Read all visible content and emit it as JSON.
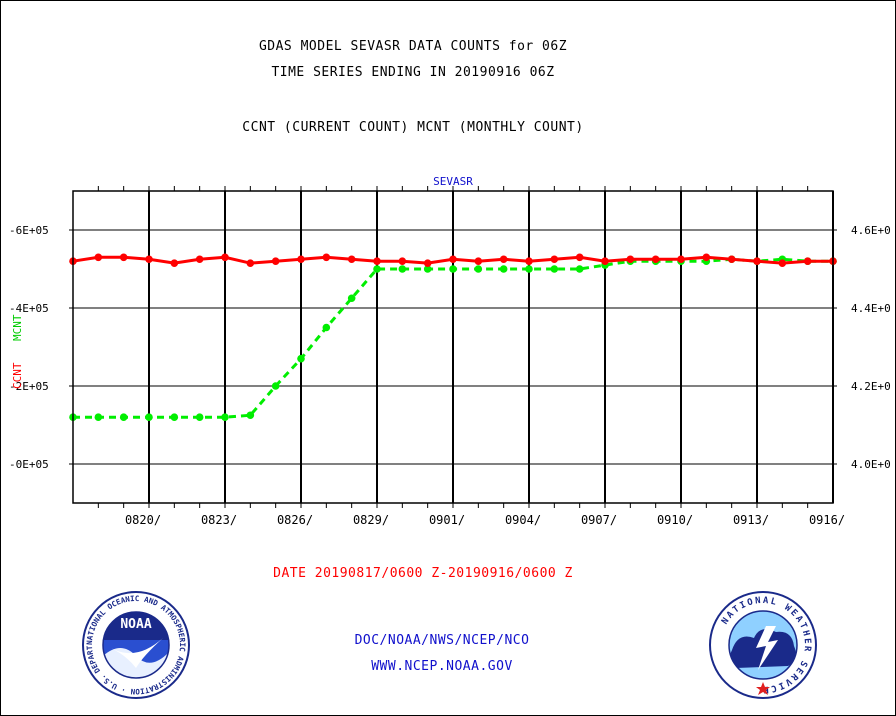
{
  "header": {
    "title_line1": "GDAS MODEL SEVASR DATA COUNTS for 06Z",
    "title_line2": "TIME SERIES ENDING IN 20190916 06Z",
    "subtitle": "CCNT (CURRENT COUNT)  MCNT (MONTHLY COUNT)"
  },
  "footer": {
    "date_range": "DATE 20190817/0600 Z-20190916/0600 Z",
    "org_path": "DOC/NOAA/NWS/NCEP/NCO",
    "website": "WWW.NCEP.NOAA.GOV"
  },
  "logos": {
    "noaa_text": "NOAA",
    "noaa_ring": "NATIONAL OCEANIC AND ATMOSPHERIC ADMINISTRATION · U.S. DEPARTMENT OF COMMERCE ·",
    "nws_ring": "NATIONAL WEATHER SERVICE"
  },
  "chart_data": {
    "type": "line",
    "panel_label": "SEVASR",
    "ylabel_left_ccnt": "CCNT",
    "ylabel_left_mcnt": "MCNT",
    "xlim": [
      0,
      30
    ],
    "x_ticks": [
      {
        "x": 3,
        "label": "0820/"
      },
      {
        "x": 6,
        "label": "0823/"
      },
      {
        "x": 9,
        "label": "0826/"
      },
      {
        "x": 12,
        "label": "0829/"
      },
      {
        "x": 15,
        "label": "0901/"
      },
      {
        "x": 18,
        "label": "0904/"
      },
      {
        "x": 21,
        "label": "0907/"
      },
      {
        "x": 24,
        "label": "0910/"
      },
      {
        "x": 27,
        "label": "0913/"
      },
      {
        "x": 30,
        "label": "0916/"
      }
    ],
    "left_axis": {
      "ylim": [
        -0.1,
        0.7
      ],
      "ticks": [
        {
          "v": 0.0,
          "label": "-0E+05"
        },
        {
          "v": 0.2,
          "label": "-2E+05"
        },
        {
          "v": 0.4,
          "label": "-4E+05"
        },
        {
          "v": 0.6,
          "label": "-6E+05"
        }
      ]
    },
    "right_axis": {
      "ylim": [
        3.9,
        4.7
      ],
      "ticks": [
        {
          "v": 4.0,
          "label": "4.0E+0"
        },
        {
          "v": 4.2,
          "label": "4.2E+0"
        },
        {
          "v": 4.4,
          "label": "4.4E+0"
        },
        {
          "v": 4.6,
          "label": "4.6E+0"
        }
      ]
    },
    "grid": true,
    "series": [
      {
        "name": "CCNT",
        "axis": "left",
        "color": "#ff0000",
        "style": "solid",
        "values": [
          0.52,
          0.53,
          0.53,
          0.525,
          0.515,
          0.525,
          0.53,
          0.515,
          0.52,
          0.525,
          0.53,
          0.525,
          0.52,
          0.52,
          0.515,
          0.525,
          0.52,
          0.525,
          0.52,
          0.525,
          0.53,
          0.52,
          0.525,
          0.525,
          0.525,
          0.53,
          0.525,
          0.52,
          0.515,
          0.52,
          0.52
        ]
      },
      {
        "name": "MCNT",
        "axis": "right",
        "color": "#00ee00",
        "style": "dashed",
        "values": [
          4.12,
          4.12,
          4.12,
          4.12,
          4.12,
          4.12,
          4.12,
          4.125,
          4.2,
          4.27,
          4.35,
          4.425,
          4.5,
          4.5,
          4.5,
          4.5,
          4.5,
          4.5,
          4.5,
          4.5,
          4.5,
          4.51,
          4.52,
          4.52,
          4.52,
          4.52,
          4.525,
          4.52,
          4.525,
          4.52,
          4.52
        ]
      }
    ]
  }
}
